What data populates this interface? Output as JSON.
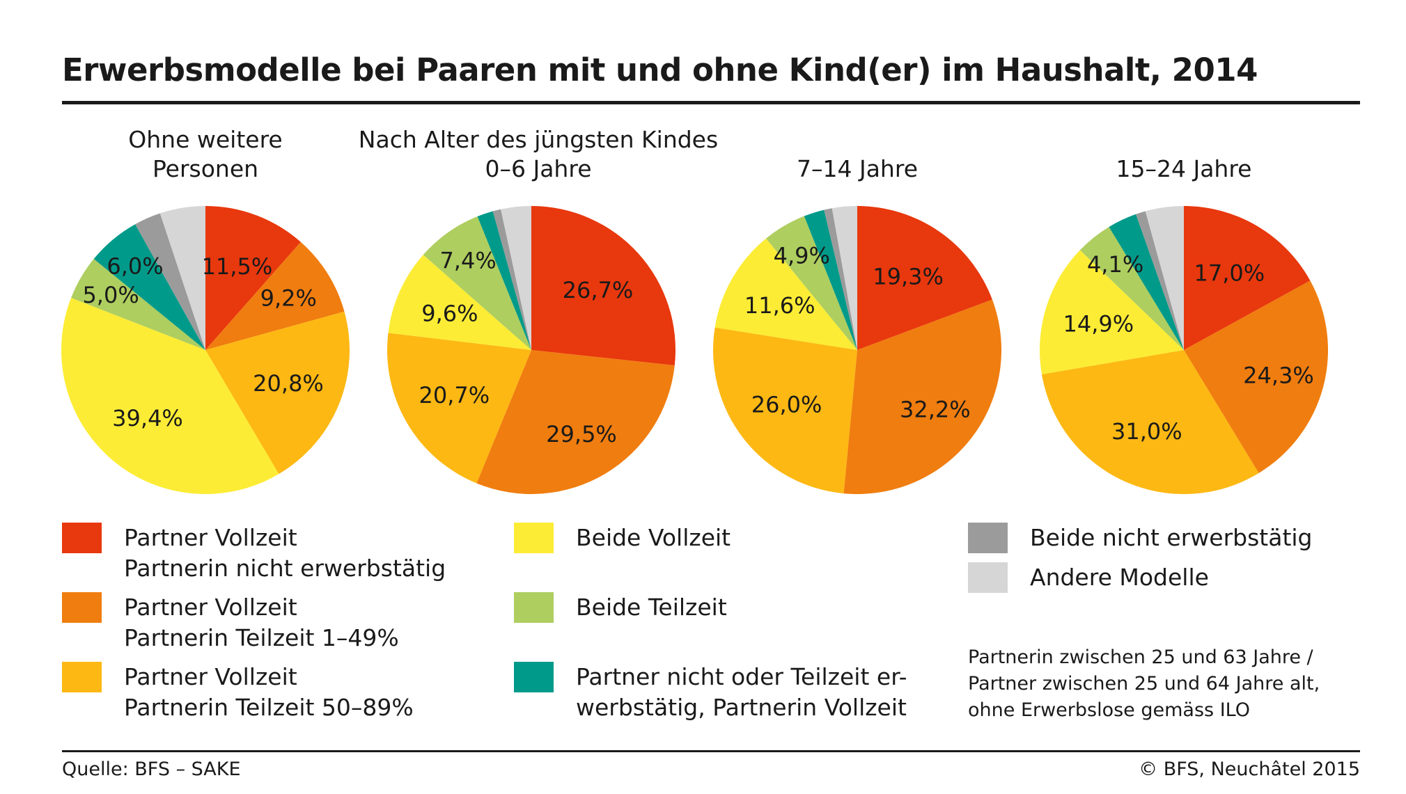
{
  "title": "Erwerbsmodelle bei Paaren mit und ohne Kind(er) im Haushalt, 2014",
  "colors": {
    "partner_vollzeit_partnerin_nicht": "#e8380d",
    "partner_vollzeit_partnerin_1_49": "#f07d0f",
    "partner_vollzeit_partnerin_50_89": "#fdb813",
    "beide_vollzeit": "#fcec35",
    "beide_teilzeit": "#aece5f",
    "partner_nicht_teilzeit_partnerin_vollzeit": "#009a8a",
    "beide_nicht_erwerbstaetig": "#9b9b9b",
    "andere_modelle": "#d6d6d6"
  },
  "chart_data": [
    {
      "type": "pie",
      "title": [
        "Ohne weitere",
        "Personen"
      ],
      "labels": [
        "Partner Vollzeit / Partnerin nicht erwerbstätig",
        "Partner Vollzeit / Partnerin Teilzeit 1–49%",
        "Partner Vollzeit / Partnerin Teilzeit 50–89%",
        "Beide Vollzeit",
        "Beide Teilzeit",
        "Partner nicht oder Teilzeit erwerbstätig, Partnerin Vollzeit",
        "Beide nicht erwerbstätig",
        "Andere Modelle"
      ],
      "values": [
        11.5,
        9.2,
        20.8,
        39.4,
        5.0,
        6.0,
        3.0,
        5.1
      ],
      "value_labels": [
        "11,5%",
        "9,2%",
        "20,8%",
        "39,4%",
        "5,0%",
        "6,0%",
        "",
        ""
      ]
    },
    {
      "type": "pie",
      "title": [
        "Nach Alter des jüngsten Kindes",
        "0–6 Jahre"
      ],
      "labels": [
        "Partner Vollzeit / Partnerin nicht erwerbstätig",
        "Partner Vollzeit / Partnerin Teilzeit 1–49%",
        "Partner Vollzeit / Partnerin Teilzeit 50–89%",
        "Beide Vollzeit",
        "Beide Teilzeit",
        "Partner nicht oder Teilzeit erwerbstätig, Partnerin Vollzeit",
        "Beide nicht erwerbstätig",
        "Andere Modelle"
      ],
      "values": [
        26.7,
        29.5,
        20.7,
        9.6,
        7.4,
        1.8,
        0.9,
        3.4
      ],
      "value_labels": [
        "26,7%",
        "29,5%",
        "20,7%",
        "9,6%",
        "7,4%",
        "",
        "",
        ""
      ]
    },
    {
      "type": "pie",
      "title": [
        "",
        "7–14 Jahre"
      ],
      "labels": [
        "Partner Vollzeit / Partnerin nicht erwerbstätig",
        "Partner Vollzeit / Partnerin Teilzeit 1–49%",
        "Partner Vollzeit / Partnerin Teilzeit 50–89%",
        "Beide Vollzeit",
        "Beide Teilzeit",
        "Partner nicht oder Teilzeit erwerbstätig, Partnerin Vollzeit",
        "Beide nicht erwerbstätig",
        "Andere Modelle"
      ],
      "values": [
        19.3,
        32.2,
        26.0,
        11.6,
        4.9,
        2.3,
        0.9,
        2.8
      ],
      "value_labels": [
        "19,3%",
        "32,2%",
        "26,0%",
        "11,6%",
        "4,9%",
        "",
        "",
        ""
      ]
    },
    {
      "type": "pie",
      "title": [
        "",
        "15–24 Jahre"
      ],
      "labels": [
        "Partner Vollzeit / Partnerin nicht erwerbstätig",
        "Partner Vollzeit / Partnerin Teilzeit 1–49%",
        "Partner Vollzeit / Partnerin Teilzeit 50–89%",
        "Beide Vollzeit",
        "Beide Teilzeit",
        "Partner nicht oder Teilzeit erwerbstätig, Partnerin Vollzeit",
        "Beide nicht erwerbstätig",
        "Andere Modelle"
      ],
      "values": [
        17.0,
        24.3,
        31.0,
        14.9,
        4.1,
        3.3,
        1.1,
        4.3
      ],
      "value_labels": [
        "17,0%",
        "24,3%",
        "31,0%",
        "14,9%",
        "4,1%",
        "",
        "",
        ""
      ]
    }
  ],
  "legend": [
    {
      "lines": [
        "Partner Vollzeit",
        "Partnerin nicht erwerbstätig"
      ],
      "color": "#e8380d"
    },
    {
      "lines": [
        "Partner Vollzeit",
        "Partnerin Teilzeit 1–49%"
      ],
      "color": "#f07d0f"
    },
    {
      "lines": [
        "Partner Vollzeit",
        "Partnerin Teilzeit 50–89%"
      ],
      "color": "#fdb813"
    },
    {
      "lines": [
        "Beide Vollzeit"
      ],
      "color": "#fcec35"
    },
    {
      "lines": [
        "Beide Teilzeit"
      ],
      "color": "#aece5f"
    },
    {
      "lines": [
        "Partner nicht oder Teilzeit er-",
        "werbstätig, Partnerin Vollzeit"
      ],
      "color": "#009a8a"
    },
    {
      "lines": [
        "Beide nicht erwerbstätig"
      ],
      "color": "#9b9b9b"
    },
    {
      "lines": [
        "Andere Modelle"
      ],
      "color": "#d6d6d6"
    }
  ],
  "note": [
    "Partnerin zwischen 25 und 63 Jahre /",
    "Partner zwischen 25 und 64 Jahre alt,",
    "ohne Erwerbslose gemäss ILO"
  ],
  "source": "Quelle: BFS – SAKE",
  "copyright": "© BFS, Neuchâtel 2015"
}
